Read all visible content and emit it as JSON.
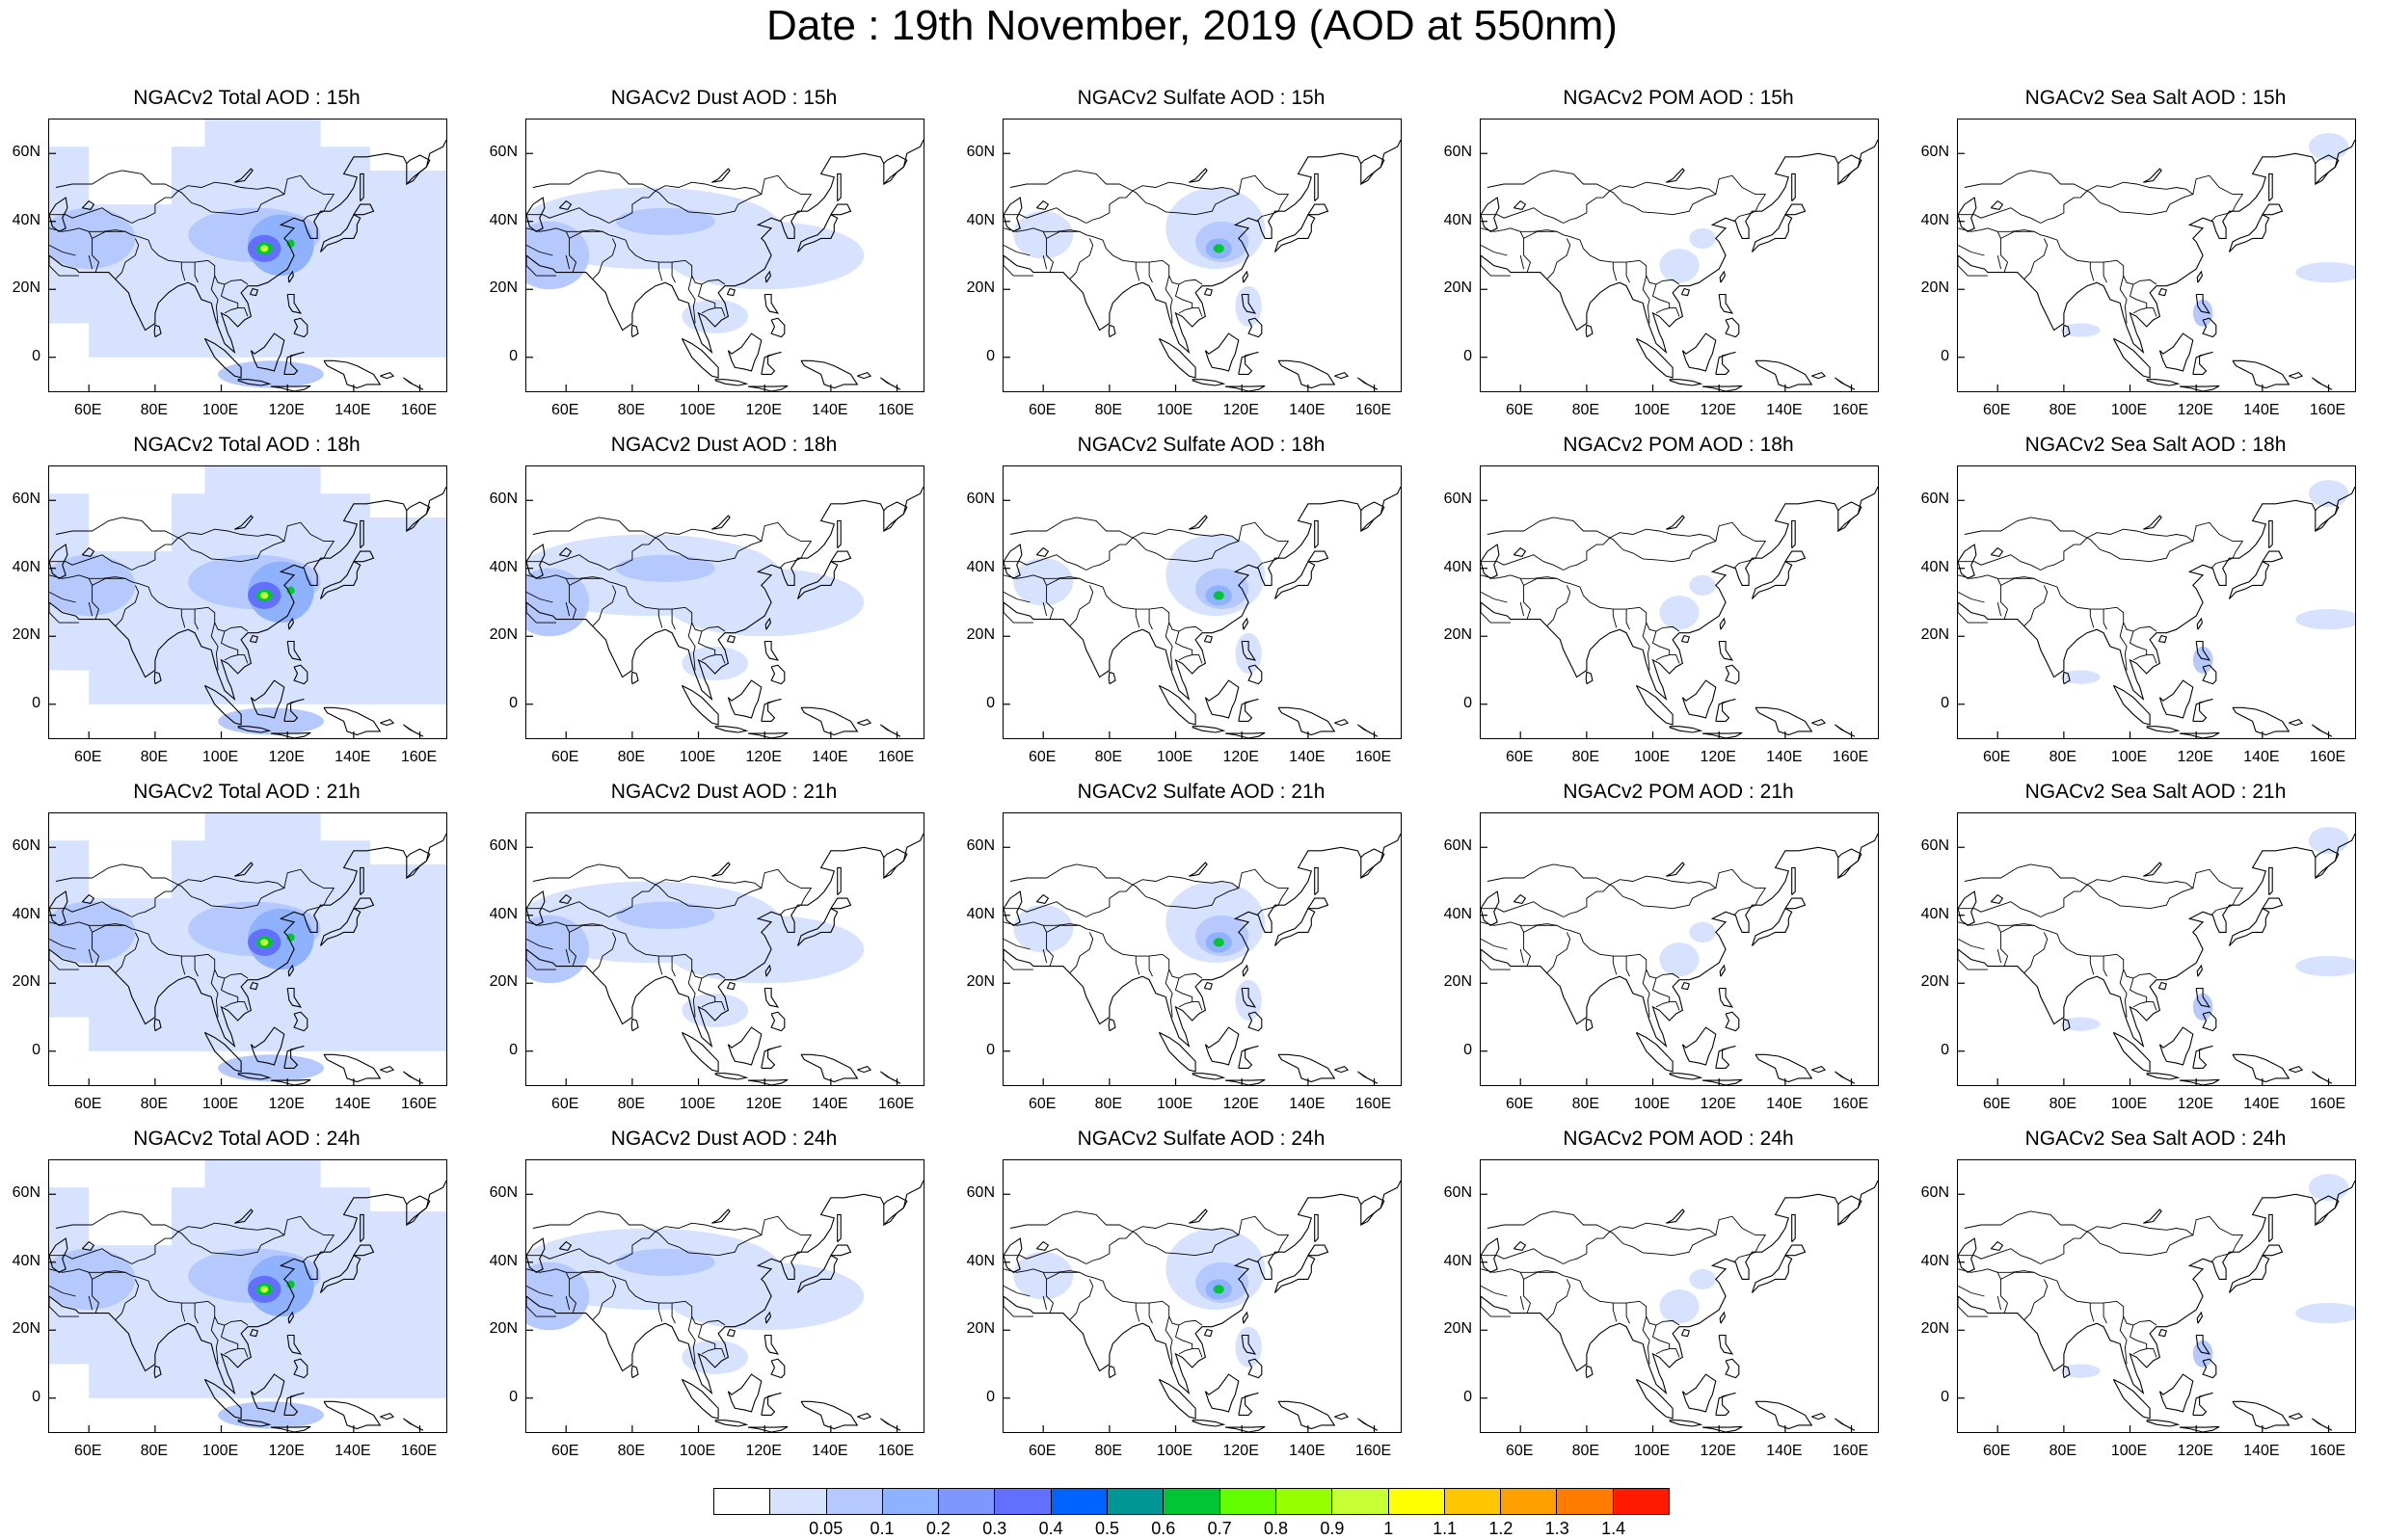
{
  "figure": {
    "title": "Date : 19th November, 2019 (AOD at 550nm)"
  },
  "panels": [
    {
      "title": "NGACv2 Total AOD : 15h",
      "species": "total"
    },
    {
      "title": "NGACv2 Dust AOD : 15h",
      "species": "dust"
    },
    {
      "title": "NGACv2 Sulfate AOD : 15h",
      "species": "sulfate"
    },
    {
      "title": "NGACv2 POM AOD : 15h",
      "species": "pom"
    },
    {
      "title": "NGACv2 Sea Salt AOD : 15h",
      "species": "seasalt"
    },
    {
      "title": "NGACv2 Total AOD : 18h",
      "species": "total"
    },
    {
      "title": "NGACv2 Dust AOD : 18h",
      "species": "dust"
    },
    {
      "title": "NGACv2 Sulfate AOD : 18h",
      "species": "sulfate"
    },
    {
      "title": "NGACv2 POM AOD : 18h",
      "species": "pom"
    },
    {
      "title": "NGACv2 Sea Salt AOD : 18h",
      "species": "seasalt"
    },
    {
      "title": "NGACv2 Total AOD : 21h",
      "species": "total"
    },
    {
      "title": "NGACv2 Dust AOD : 21h",
      "species": "dust"
    },
    {
      "title": "NGACv2 Sulfate AOD : 21h",
      "species": "sulfate"
    },
    {
      "title": "NGACv2 POM AOD : 21h",
      "species": "pom"
    },
    {
      "title": "NGACv2 Sea Salt AOD : 21h",
      "species": "seasalt"
    },
    {
      "title": "NGACv2 Total AOD : 24h",
      "species": "total"
    },
    {
      "title": "NGACv2 Dust AOD : 24h",
      "species": "dust"
    },
    {
      "title": "NGACv2 Sulfate AOD : 24h",
      "species": "sulfate"
    },
    {
      "title": "NGACv2 POM AOD : 24h",
      "species": "pom"
    },
    {
      "title": "NGACv2 Sea Salt  AOD : 24h",
      "species": "seasalt"
    }
  ],
  "axes": {
    "lon_range": [
      48,
      168
    ],
    "lat_range": [
      -10,
      70
    ],
    "x_ticks": [
      {
        "value": 60,
        "label": "60E"
      },
      {
        "value": 80,
        "label": "80E"
      },
      {
        "value": 100,
        "label": "100E"
      },
      {
        "value": 120,
        "label": "120E"
      },
      {
        "value": 140,
        "label": "140E"
      },
      {
        "value": 160,
        "label": "160E"
      }
    ],
    "y_ticks": [
      {
        "value": 60,
        "label": "60N"
      },
      {
        "value": 40,
        "label": "40N"
      },
      {
        "value": 20,
        "label": "20N"
      },
      {
        "value": 0,
        "label": "0"
      }
    ]
  },
  "colorbar": {
    "colors": [
      "#ffffff",
      "#d6e2ff",
      "#b5c9ff",
      "#8eb2ff",
      "#7f96ff",
      "#6370ff",
      "#0063ff",
      "#009696",
      "#00c633",
      "#63ff00",
      "#96ff00",
      "#c6ff33",
      "#ffff00",
      "#ffc600",
      "#ffa000",
      "#ff7c00",
      "#ff1900"
    ],
    "labels": [
      "0.05",
      "0.1",
      "0.2",
      "0.3",
      "0.4",
      "0.5",
      "0.6",
      "0.7",
      "0.8",
      "0.9",
      "1",
      "1.1",
      "1.2",
      "1.3",
      "1.4"
    ]
  }
}
